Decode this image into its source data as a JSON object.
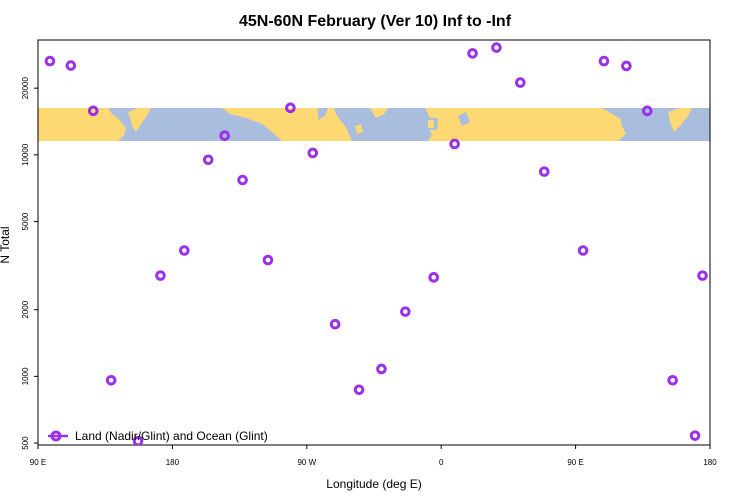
{
  "chart_data": {
    "type": "scatter",
    "title": "45N-60N February (Ver 10)   Inf to -Inf",
    "xlabel": "Longitude (deg E)",
    "ylabel": "N Total",
    "y_scale": "log",
    "x_ticks": [
      {
        "value": 90,
        "label": "90 E"
      },
      {
        "value": 180,
        "label": "180"
      },
      {
        "value": 270,
        "label": "90 W"
      },
      {
        "value": 360,
        "label": "0"
      },
      {
        "value": 450,
        "label": "90 E"
      },
      {
        "value": 540,
        "label": "180"
      }
    ],
    "y_ticks": [
      {
        "value": 500,
        "label": "500"
      },
      {
        "value": 1000,
        "label": "1000"
      },
      {
        "value": 2000,
        "label": "2000"
      },
      {
        "value": 5000,
        "label": "5000"
      },
      {
        "value": 10000,
        "label": "10000"
      },
      {
        "value": 20000,
        "label": "20000"
      }
    ],
    "xlim": [
      90,
      540
    ],
    "ylim": [
      490,
      33000
    ],
    "colors": {
      "series": "#9b30e8",
      "ocean": "#a9bedf",
      "land": "#fed873"
    },
    "series": [
      {
        "name": "Land (Nadir/Glint) and Ocean (Glint)",
        "x": [
          98,
          112,
          127,
          139,
          157,
          172,
          188,
          204,
          215,
          227,
          244,
          259,
          274,
          289,
          305,
          320,
          336,
          355,
          369,
          381,
          397,
          413,
          429,
          455,
          469,
          484,
          498,
          515,
          530,
          535
        ],
        "y": [
          26500,
          25300,
          15800,
          960,
          510,
          2850,
          3700,
          9500,
          12200,
          7700,
          3350,
          16300,
          10200,
          1720,
          870,
          1080,
          1960,
          2800,
          11200,
          28700,
          30500,
          21200,
          8400,
          3700,
          26500,
          25200,
          15800,
          960,
          540,
          2850
        ]
      }
    ],
    "legend": {
      "position": "bottom-left",
      "entries": [
        "Land (Nadir/Glint) and Ocean (Glint)"
      ]
    },
    "map_strip": {
      "description": "world map band 45N-60N",
      "lat_range": [
        45,
        60
      ]
    }
  }
}
